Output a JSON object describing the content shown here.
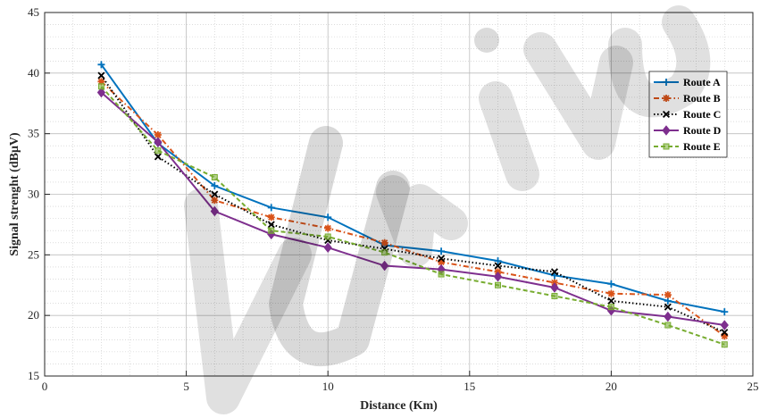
{
  "chart_data": {
    "type": "line",
    "xlabel": "Distance (Km)",
    "ylabel": "Signal strenght (dBμV)",
    "xlim": [
      0,
      25
    ],
    "ylim": [
      15,
      45
    ],
    "x_ticks": [
      "0",
      "5",
      "10",
      "15",
      "20",
      "25"
    ],
    "y_ticks": [
      "15",
      "20",
      "25",
      "30",
      "35",
      "40",
      "45"
    ],
    "x_tick_values": [
      0,
      5,
      10,
      15,
      20,
      25
    ],
    "y_tick_values": [
      15,
      20,
      25,
      30,
      35,
      40,
      45
    ],
    "grid": true,
    "minor_grid": true,
    "legend_position": "right",
    "x": [
      2,
      4,
      6,
      8,
      10,
      12,
      14,
      16,
      18,
      20,
      22,
      24
    ],
    "series": [
      {
        "name": "Route A",
        "color": "#0072BD",
        "dash": "solid",
        "marker": "plus",
        "values": [
          40.7,
          34.2,
          30.7,
          28.9,
          28.1,
          25.8,
          25.3,
          24.5,
          23.3,
          22.6,
          21.2,
          20.3
        ]
      },
      {
        "name": "Route B",
        "color": "#D95319",
        "dash": "dashdot",
        "marker": "asterisk",
        "values": [
          39.3,
          34.9,
          29.5,
          28.1,
          27.2,
          26.0,
          24.4,
          23.6,
          22.7,
          21.8,
          21.7,
          18.3
        ]
      },
      {
        "name": "Route C",
        "color": "#000000",
        "dash": "dotted",
        "marker": "x",
        "values": [
          39.8,
          33.1,
          30.0,
          27.5,
          26.2,
          25.5,
          24.7,
          24.1,
          23.6,
          21.2,
          20.7,
          18.6
        ]
      },
      {
        "name": "Route D",
        "color": "#7E2F8E",
        "dash": "solid",
        "marker": "diamond",
        "values": [
          38.4,
          34.3,
          28.6,
          26.7,
          25.6,
          24.1,
          23.8,
          23.2,
          22.3,
          20.4,
          19.9,
          19.2
        ]
      },
      {
        "name": "Route E",
        "color": "#77AC30",
        "dash": "dashed",
        "marker": "square",
        "values": [
          38.9,
          33.6,
          31.4,
          27.0,
          26.5,
          25.2,
          23.4,
          22.5,
          21.6,
          20.7,
          19.2,
          17.6
        ]
      }
    ]
  }
}
